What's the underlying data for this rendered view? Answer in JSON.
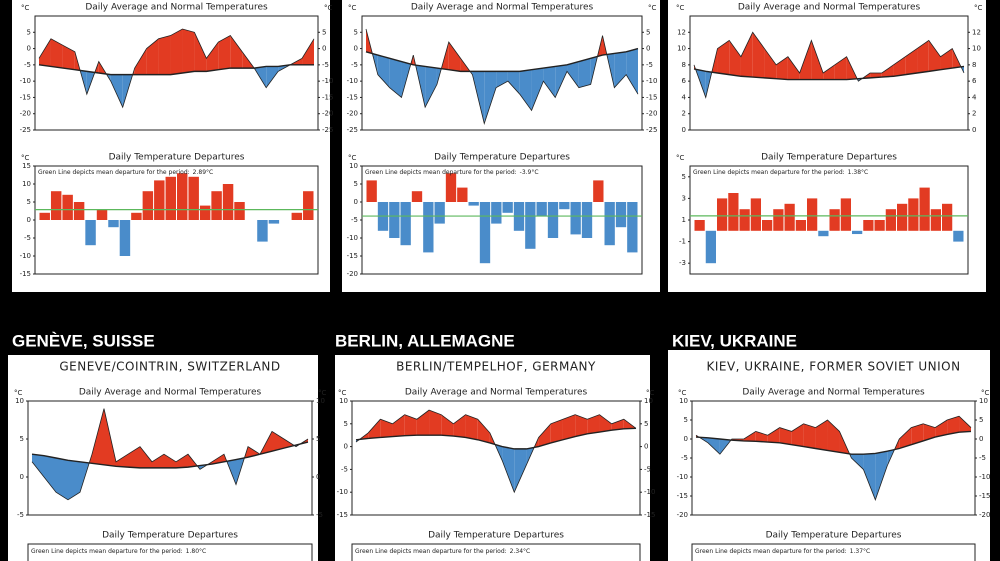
{
  "headings": [
    "GENÈVE, SUISSE",
    "BERLIN, ALLEMAGNE",
    "KIEV, UKRAINE"
  ],
  "chart_data": [
    {
      "type": "area",
      "title": "Daily Average and Normal Temperatures",
      "ylabel": "°C",
      "ylim": [
        -25,
        10
      ],
      "yticks": [
        -25,
        -20,
        -15,
        -10,
        -5,
        0,
        5
      ],
      "above_color": "#e23b22",
      "below_color": "#4a8cca",
      "categories": [
        null,
        null,
        null,
        null,
        null,
        null,
        null,
        null,
        null,
        null,
        null,
        null,
        null,
        null,
        null,
        null,
        null,
        null,
        null,
        null,
        null,
        null,
        null,
        null
      ],
      "series": [
        {
          "color": "#222",
          "values": [
            -3,
            3,
            1,
            -1,
            -14,
            -4,
            -10,
            -18,
            -6,
            0,
            3,
            4,
            6,
            5,
            -3,
            2,
            4,
            -1,
            -6,
            -12,
            -7,
            -5,
            -3,
            3
          ]
        },
        {
          "color": "#222",
          "values": [
            -5,
            -5.5,
            -6,
            -6.5,
            -7,
            -7.5,
            -8,
            -8,
            -8,
            -8,
            -8,
            -8,
            -7.5,
            -7,
            -7,
            -6.5,
            -6,
            -6,
            -6,
            -5.5,
            -5.5,
            -5,
            -5,
            -5
          ]
        }
      ]
    },
    {
      "type": "bar",
      "title": "Daily Temperature Departures",
      "ylabel": "°C",
      "note": "Green Line depicts mean departure for the period:",
      "mean": 2.89,
      "mean_label": "2.89°C",
      "ylim": [
        -15,
        15
      ],
      "yticks": [
        -15,
        -10,
        -5,
        0,
        5,
        10,
        15
      ],
      "above_color": "#e23b22",
      "below_color": "#4a8cca",
      "mean_color": "#5cb85c",
      "categories": [
        null,
        null,
        null,
        null,
        null,
        null,
        null,
        null,
        null,
        null,
        null,
        null,
        null,
        null,
        null,
        null,
        null,
        null,
        null,
        null,
        null,
        null,
        null,
        null
      ],
      "values": [
        2,
        8,
        7,
        5,
        -7,
        3,
        -2,
        -10,
        2,
        8,
        11,
        12,
        13,
        12,
        4,
        8,
        10,
        5,
        0,
        -6,
        -1,
        0,
        2,
        8
      ]
    },
    {
      "type": "area",
      "title": "Daily Average and Normal Temperatures",
      "ylabel": "°C",
      "ylim": [
        -25,
        10
      ],
      "yticks": [
        -25,
        -20,
        -15,
        -10,
        -5,
        0,
        5
      ],
      "above_color": "#e23b22",
      "below_color": "#4a8cca",
      "categories": [
        null,
        null,
        null,
        null,
        null,
        null,
        null,
        null,
        null,
        null,
        null,
        null,
        null,
        null,
        null,
        null,
        null,
        null,
        null,
        null,
        null,
        null,
        null,
        null
      ],
      "series": [
        {
          "color": "#222",
          "values": [
            6,
            -8,
            -12,
            -15,
            -2,
            -18,
            -11,
            2,
            -3,
            -8,
            -23,
            -12,
            -10,
            -14,
            -19,
            -10,
            -15,
            -7,
            -12,
            -11,
            4,
            -12,
            -8,
            -14
          ]
        },
        {
          "color": "#222",
          "values": [
            -1,
            -2,
            -3,
            -4,
            -5,
            -5.5,
            -6,
            -6.5,
            -7,
            -7,
            -7,
            -7,
            -7,
            -7,
            -6.5,
            -6,
            -5.5,
            -5,
            -4,
            -3,
            -2,
            -1.5,
            -1,
            0
          ]
        }
      ]
    },
    {
      "type": "bar",
      "title": "Daily Temperature Departures",
      "ylabel": "°C",
      "note": "Green Line depicts mean departure for the period:",
      "mean": -3.9,
      "mean_label": "-3.9°C",
      "ylim": [
        -20,
        10
      ],
      "yticks": [
        -20,
        -15,
        -10,
        -5,
        0,
        5,
        10
      ],
      "above_color": "#e23b22",
      "below_color": "#4a8cca",
      "mean_color": "#5cb85c",
      "categories": [
        null,
        null,
        null,
        null,
        null,
        null,
        null,
        null,
        null,
        null,
        null,
        null,
        null,
        null,
        null,
        null,
        null,
        null,
        null,
        null,
        null,
        null,
        null,
        null
      ],
      "values": [
        6,
        -8,
        -10,
        -12,
        3,
        -14,
        -6,
        8,
        4,
        -1,
        -17,
        -6,
        -3,
        -8,
        -13,
        -4,
        -10,
        -2,
        -9,
        -10,
        6,
        -12,
        -7,
        -14
      ]
    },
    {
      "type": "area",
      "title": "Daily Average and Normal Temperatures",
      "ylabel": "°C",
      "ylim": [
        0,
        14
      ],
      "yticks": [
        0,
        2,
        4,
        6,
        8,
        10,
        12
      ],
      "above_color": "#e23b22",
      "below_color": "#4a8cca",
      "categories": [
        null,
        null,
        null,
        null,
        null,
        null,
        null,
        null,
        null,
        null,
        null,
        null,
        null,
        null,
        null,
        null,
        null,
        null,
        null,
        null,
        null,
        null,
        null,
        null
      ],
      "series": [
        {
          "color": "#222",
          "values": [
            8,
            4,
            10,
            11,
            9,
            12,
            10,
            8,
            9,
            7,
            11,
            7,
            8,
            9,
            6,
            7,
            7,
            8,
            9,
            10,
            11,
            9,
            10,
            7
          ]
        },
        {
          "color": "#222",
          "values": [
            7.5,
            7.2,
            7,
            6.8,
            6.6,
            6.5,
            6.4,
            6.3,
            6.2,
            6.2,
            6.2,
            6.2,
            6.2,
            6.2,
            6.3,
            6.4,
            6.5,
            6.6,
            6.8,
            7,
            7.2,
            7.4,
            7.6,
            7.8
          ]
        }
      ]
    },
    {
      "type": "bar",
      "title": "Daily Temperature Departures",
      "ylabel": "°C",
      "note": "Green Line depicts mean departure for the period:",
      "mean": 1.38,
      "mean_label": "1.38°C",
      "ylim": [
        -4,
        6
      ],
      "yticks": [
        -3,
        -1,
        1,
        3,
        5
      ],
      "above_color": "#e23b22",
      "below_color": "#4a8cca",
      "mean_color": "#5cb85c",
      "categories": [
        null,
        null,
        null,
        null,
        null,
        null,
        null,
        null,
        null,
        null,
        null,
        null,
        null,
        null,
        null,
        null,
        null,
        null,
        null,
        null,
        null,
        null,
        null,
        null
      ],
      "values": [
        1,
        -3,
        3,
        3.5,
        2,
        3,
        1,
        2,
        2.5,
        1,
        3,
        -0.5,
        2,
        3,
        -0.3,
        1,
        1,
        2,
        2.5,
        3,
        4,
        2,
        2.5,
        -1
      ]
    },
    {
      "type": "area",
      "station": "GENEVE/COINTRIN, SWITZERLAND",
      "title": "Daily Average and Normal Temperatures",
      "ylabel": "°C",
      "ylim": [
        -5,
        10
      ],
      "yticks": [
        -5,
        0,
        5,
        10
      ],
      "above_color": "#e23b22",
      "below_color": "#4a8cca",
      "categories": [
        null,
        null,
        null,
        null,
        null,
        null,
        null,
        null,
        null,
        null,
        null,
        null,
        null,
        null,
        null,
        null,
        null,
        null,
        null,
        null,
        null,
        null,
        null,
        null
      ],
      "series": [
        {
          "color": "#222",
          "values": [
            2,
            0,
            -2,
            -3,
            -2,
            3,
            9,
            2,
            3,
            4,
            2,
            3,
            2,
            3,
            1,
            2,
            3,
            -1,
            4,
            3,
            6,
            5,
            4,
            5
          ]
        },
        {
          "color": "#222",
          "values": [
            3,
            2.8,
            2.5,
            2.2,
            2,
            1.8,
            1.6,
            1.4,
            1.3,
            1.2,
            1.2,
            1.2,
            1.2,
            1.3,
            1.5,
            1.7,
            2,
            2.3,
            2.6,
            3,
            3.4,
            3.8,
            4.2,
            4.6
          ]
        }
      ]
    },
    {
      "type": "bar",
      "title": "Daily Temperature Departures",
      "note": "Green Line depicts mean departure for the period:",
      "mean_label": "1.80°C"
    },
    {
      "type": "area",
      "station": "BERLIN/TEMPELHOF, GERMANY",
      "title": "Daily Average and Normal Temperatures",
      "ylabel": "°C",
      "ylim": [
        -15,
        10
      ],
      "yticks": [
        -15,
        -10,
        -5,
        0,
        5,
        10
      ],
      "above_color": "#e23b22",
      "below_color": "#4a8cca",
      "categories": [
        null,
        null,
        null,
        null,
        null,
        null,
        null,
        null,
        null,
        null,
        null,
        null,
        null,
        null,
        null,
        null,
        null,
        null,
        null,
        null,
        null,
        null,
        null,
        null
      ],
      "series": [
        {
          "color": "#222",
          "values": [
            1,
            3,
            6,
            5,
            7,
            6,
            8,
            7,
            5,
            7,
            6,
            3,
            -3,
            -10,
            -4,
            2,
            5,
            6,
            7,
            6,
            7,
            5,
            6,
            4
          ]
        },
        {
          "color": "#222",
          "values": [
            1.5,
            1.8,
            2,
            2.2,
            2.4,
            2.5,
            2.5,
            2.5,
            2.3,
            2,
            1.5,
            0.8,
            0,
            -0.5,
            -0.5,
            0,
            0.8,
            1.5,
            2.2,
            2.8,
            3.2,
            3.6,
            3.9,
            4
          ]
        }
      ]
    },
    {
      "type": "bar",
      "title": "Daily Temperature Departures",
      "note": "Green Line depicts mean departure for the period:",
      "mean_label": "2.34°C"
    },
    {
      "type": "area",
      "station": "KIEV, UKRAINE, FORMER SOVIET UNION",
      "title": "Daily Average and Normal Temperatures",
      "ylabel": "°C",
      "ylim": [
        -20,
        10
      ],
      "yticks": [
        -20,
        -15,
        -10,
        -5,
        0,
        5,
        10
      ],
      "above_color": "#e23b22",
      "below_color": "#4a8cca",
      "categories": [
        null,
        null,
        null,
        null,
        null,
        null,
        null,
        null,
        null,
        null,
        null,
        null,
        null,
        null,
        null,
        null,
        null,
        null,
        null,
        null,
        null,
        null,
        null,
        null
      ],
      "series": [
        {
          "color": "#222",
          "values": [
            1,
            -1,
            -4,
            0,
            0,
            2,
            1,
            3,
            2,
            4,
            3,
            5,
            2,
            -5,
            -8,
            -16,
            -7,
            0,
            3,
            4,
            3,
            5,
            6,
            3
          ]
        },
        {
          "color": "#222",
          "values": [
            0.5,
            0.3,
            0,
            -0.3,
            -0.5,
            -0.6,
            -0.8,
            -1,
            -1.5,
            -2,
            -2.5,
            -3,
            -3.5,
            -4,
            -4,
            -3.8,
            -3.2,
            -2.5,
            -1.5,
            -0.5,
            0.5,
            1.2,
            1.8,
            2
          ]
        }
      ]
    },
    {
      "type": "bar",
      "title": "Daily Temperature Departures",
      "note": "Green Line depicts mean departure for the period:",
      "mean_label": "1.37°C"
    }
  ]
}
